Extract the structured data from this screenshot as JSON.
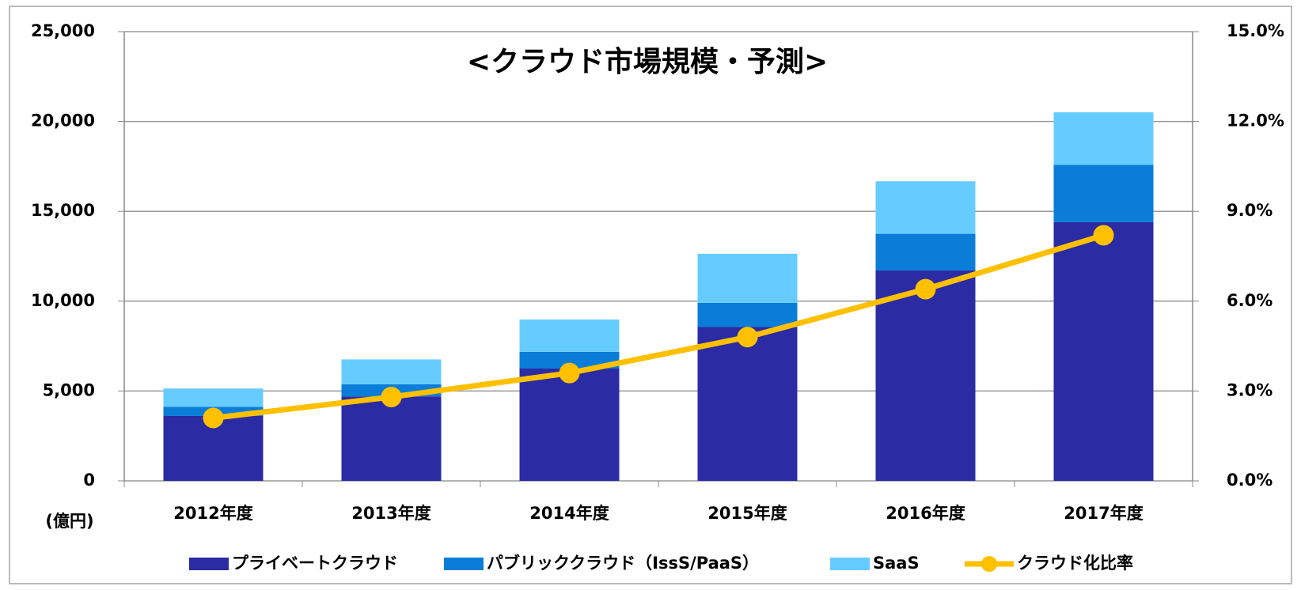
{
  "chart_data": {
    "type": "stacked_bar_line",
    "title": "<クラウド市場規模・予測>",
    "unit_label": "(億円)",
    "categories": [
      "2012年度",
      "2013年度",
      "2014年度",
      "2015年度",
      "2016年度",
      "2017年度"
    ],
    "series": [
      {
        "name": "プライベートクラウド",
        "color": "#2b2ba3",
        "values": [
          3610,
          4700,
          6250,
          8560,
          11710,
          14400
        ]
      },
      {
        "name": "パブリッククラウド（IssS/PaaS）",
        "color": "#0a7dd8",
        "values": [
          510,
          670,
          930,
          1350,
          2040,
          3190
        ]
      },
      {
        "name": "SaaS",
        "color": "#66ccff",
        "values": [
          1020,
          1390,
          1800,
          2730,
          2920,
          2920
        ]
      },
      {
        "name": "クラウド化比率",
        "color": "#ffc000",
        "axis": "y2",
        "values": [
          2.1,
          2.8,
          3.6,
          4.8,
          6.4,
          8.2
        ]
      }
    ],
    "ylim": [
      0,
      25000
    ],
    "yticks": [
      0,
      {
        "value": 5000,
        "label": "5,000"
      },
      {
        "value": 10000,
        "label": "10,000"
      },
      {
        "value": 15000,
        "label": "15,000"
      },
      {
        "value": 20000,
        "label": "20,000"
      },
      {
        "value": 25000,
        "label": "25,000"
      }
    ],
    "y2lim": [
      0,
      15
    ],
    "y2ticks": [
      {
        "value": 0,
        "label": "0.0%"
      },
      {
        "value": 3,
        "label": "3.0%"
      },
      {
        "value": 6,
        "label": "6.0%"
      },
      {
        "value": 9,
        "label": "9.0%"
      },
      {
        "value": 12,
        "label": "12.0%"
      },
      {
        "value": 15,
        "label": "15.0%"
      }
    ],
    "grid": true
  }
}
